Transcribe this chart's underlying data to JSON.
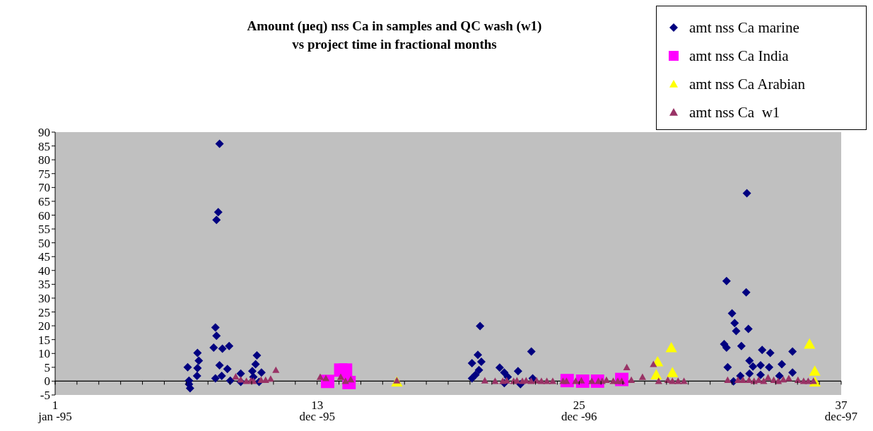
{
  "chart_data": {
    "type": "scatter",
    "title": "Amount (µeq) nss Ca in samples and QC wash (w1)\nvs project time in fractional months",
    "xlim": [
      1,
      37
    ],
    "annotations": [
      "jan -95",
      "dec -95",
      "dec -96",
      "dec-97"
    ],
    "xticks": [
      1,
      {
        "value": 2,
        "label": null
      },
      {
        "value": 3,
        "label": null
      },
      {
        "value": 4,
        "label": null
      },
      {
        "value": 5,
        "label": null
      },
      {
        "value": 6,
        "label": null
      },
      {
        "value": 7,
        "label": null
      },
      {
        "value": 8,
        "label": null
      },
      {
        "value": 9,
        "label": null
      },
      {
        "value": 10,
        "label": null
      },
      {
        "value": 11,
        "label": null
      },
      {
        "value": 12,
        "label": null
      },
      13,
      {
        "value": 14,
        "label": null
      },
      {
        "value": 15,
        "label": null
      },
      {
        "value": 16,
        "label": null
      },
      {
        "value": 17,
        "label": null
      },
      {
        "value": 18,
        "label": null
      },
      {
        "value": 19,
        "label": null
      },
      {
        "value": 20,
        "label": null
      },
      {
        "value": 21,
        "label": null
      },
      {
        "value": 22,
        "label": null
      },
      {
        "value": 23,
        "label": null
      },
      {
        "value": 24,
        "label": null
      },
      25,
      {
        "value": 26,
        "label": null
      },
      {
        "value": 27,
        "label": null
      },
      {
        "value": 28,
        "label": null
      },
      {
        "value": 29,
        "label": null
      },
      {
        "value": 30,
        "label": null
      },
      {
        "value": 31,
        "label": null
      },
      {
        "value": 32,
        "label": null
      },
      {
        "value": 33,
        "label": null
      },
      {
        "value": 34,
        "label": null
      },
      {
        "value": 35,
        "label": null
      },
      {
        "value": 36,
        "label": null
      },
      37
    ],
    "ylim": [
      -5,
      90
    ],
    "yticks": [
      -5,
      0,
      5,
      10,
      15,
      20,
      25,
      30,
      35,
      40,
      45,
      50,
      55,
      60,
      65,
      70,
      75,
      80,
      85,
      90
    ],
    "legend": "top right",
    "series": [
      {
        "name": "amt nss Ca marine",
        "color": "#000080",
        "marker": "diamond",
        "x": [
          8.53,
          8.47,
          8.39,
          8.34,
          8.39,
          8.26,
          8.66,
          8.97,
          7.52,
          7.58,
          7.07,
          7.52,
          7.5,
          7.13,
          7.13,
          7.18,
          8.53,
          8.89,
          8.34,
          8.63,
          9.02,
          9.5,
          9.5,
          10.24,
          10.18,
          10.03,
          10.45,
          10.34,
          10.08,
          20.46,
          22.81,
          20.36,
          20.52,
          20.09,
          20.41,
          20.09,
          20.25,
          21.36,
          21.57,
          22.2,
          21.73,
          21.57,
          22.31,
          22.87,
          32.68,
          31.75,
          32.65,
          32.0,
          32.12,
          32.19,
          32.75,
          31.64,
          31.75,
          32.43,
          33.38,
          33.75,
          34.77,
          31.8,
          32.8,
          32.96,
          33.31,
          33.7,
          34.28,
          32.8,
          33.31,
          34.77,
          32.38,
          32.07,
          34.17
        ],
        "values": [
          85.8,
          61.1,
          58.3,
          19.4,
          16.4,
          12.1,
          11.7,
          12.7,
          10.2,
          7.4,
          5.0,
          4.7,
          1.9,
          0.2,
          -1.1,
          -2.6,
          5.7,
          4.4,
          1.0,
          1.9,
          0.2,
          2.7,
          -0.3,
          9.3,
          6.1,
          3.6,
          3.1,
          -0.3,
          1.5,
          19.9,
          10.7,
          9.5,
          7.0,
          6.5,
          4.0,
          1.0,
          2.3,
          4.9,
          3.1,
          3.6,
          1.5,
          -0.7,
          -1.1,
          1.0,
          67.9,
          36.2,
          32.1,
          24.5,
          21.0,
          18.1,
          18.9,
          13.4,
          12.1,
          12.7,
          11.3,
          10.2,
          10.7,
          5.0,
          7.4,
          5.3,
          5.7,
          5.0,
          6.1,
          2.7,
          2.3,
          3.1,
          1.9,
          -0.1,
          1.9
        ]
      },
      {
        "name": "amt nss Ca India",
        "color": "#ff00ff",
        "marker": "square",
        "x": [
          14.08,
          14.3,
          13.48,
          14.46,
          24.45,
          25.16,
          25.84,
          26.95
        ],
        "values": [
          4.0,
          4.0,
          -0.1,
          -0.5,
          0.2,
          0.0,
          0.0,
          0.6
        ]
      },
      {
        "name": "amt nss Ca Arabian",
        "color": "#ffff00",
        "marker": "triangle",
        "x": [
          16.65,
          29.22,
          28.59,
          28.53,
          29.27,
          35.55,
          35.79,
          35.8
        ],
        "values": [
          -0.3,
          12.1,
          7.0,
          2.3,
          3.1,
          13.4,
          3.6,
          -0.3
        ]
      },
      {
        "name": "amt nss Ca  w1",
        "color": "#993366",
        "marker": "triangle",
        "x": [
          9.27,
          9.5,
          9.76,
          9.97,
          10.08,
          10.43,
          10.64,
          10.87,
          11.11,
          13.14,
          13.4,
          14.08,
          14.3,
          14.54,
          16.65,
          20.68,
          21.15,
          21.5,
          21.68,
          22.0,
          22.15,
          22.4,
          22.57,
          22.8,
          23.05,
          23.27,
          23.52,
          23.79,
          24.26,
          24.42,
          24.84,
          25.1,
          25.58,
          25.88,
          26.05,
          26.25,
          26.56,
          26.77,
          26.95,
          27.18,
          27.39,
          27.9,
          28.4,
          28.64,
          29.06,
          29.27,
          29.53,
          29.8,
          31.8,
          32.27,
          32.5,
          32.78,
          33.01,
          33.22,
          33.45,
          33.65,
          33.91,
          34.12,
          34.35,
          34.6,
          35.02,
          35.28,
          35.49,
          35.73
        ],
        "values": [
          1.6,
          0.5,
          0,
          0.2,
          0,
          0.4,
          0.4,
          0.8,
          4.0,
          1.5,
          1.0,
          1.5,
          0,
          0.6,
          0.2,
          0.2,
          0,
          0,
          0.2,
          0,
          0.2,
          0,
          0.2,
          0,
          0.2,
          0,
          0,
          0,
          0,
          0,
          0,
          0.2,
          0,
          0,
          0,
          0.4,
          0,
          0,
          0,
          5.0,
          0.4,
          1.5,
          6.1,
          0,
          0.4,
          0,
          0,
          0,
          0.4,
          0.4,
          0.4,
          0.4,
          0,
          0.4,
          0,
          1.3,
          0.4,
          0,
          0.6,
          1.0,
          0.4,
          0,
          0,
          0
        ]
      }
    ]
  }
}
